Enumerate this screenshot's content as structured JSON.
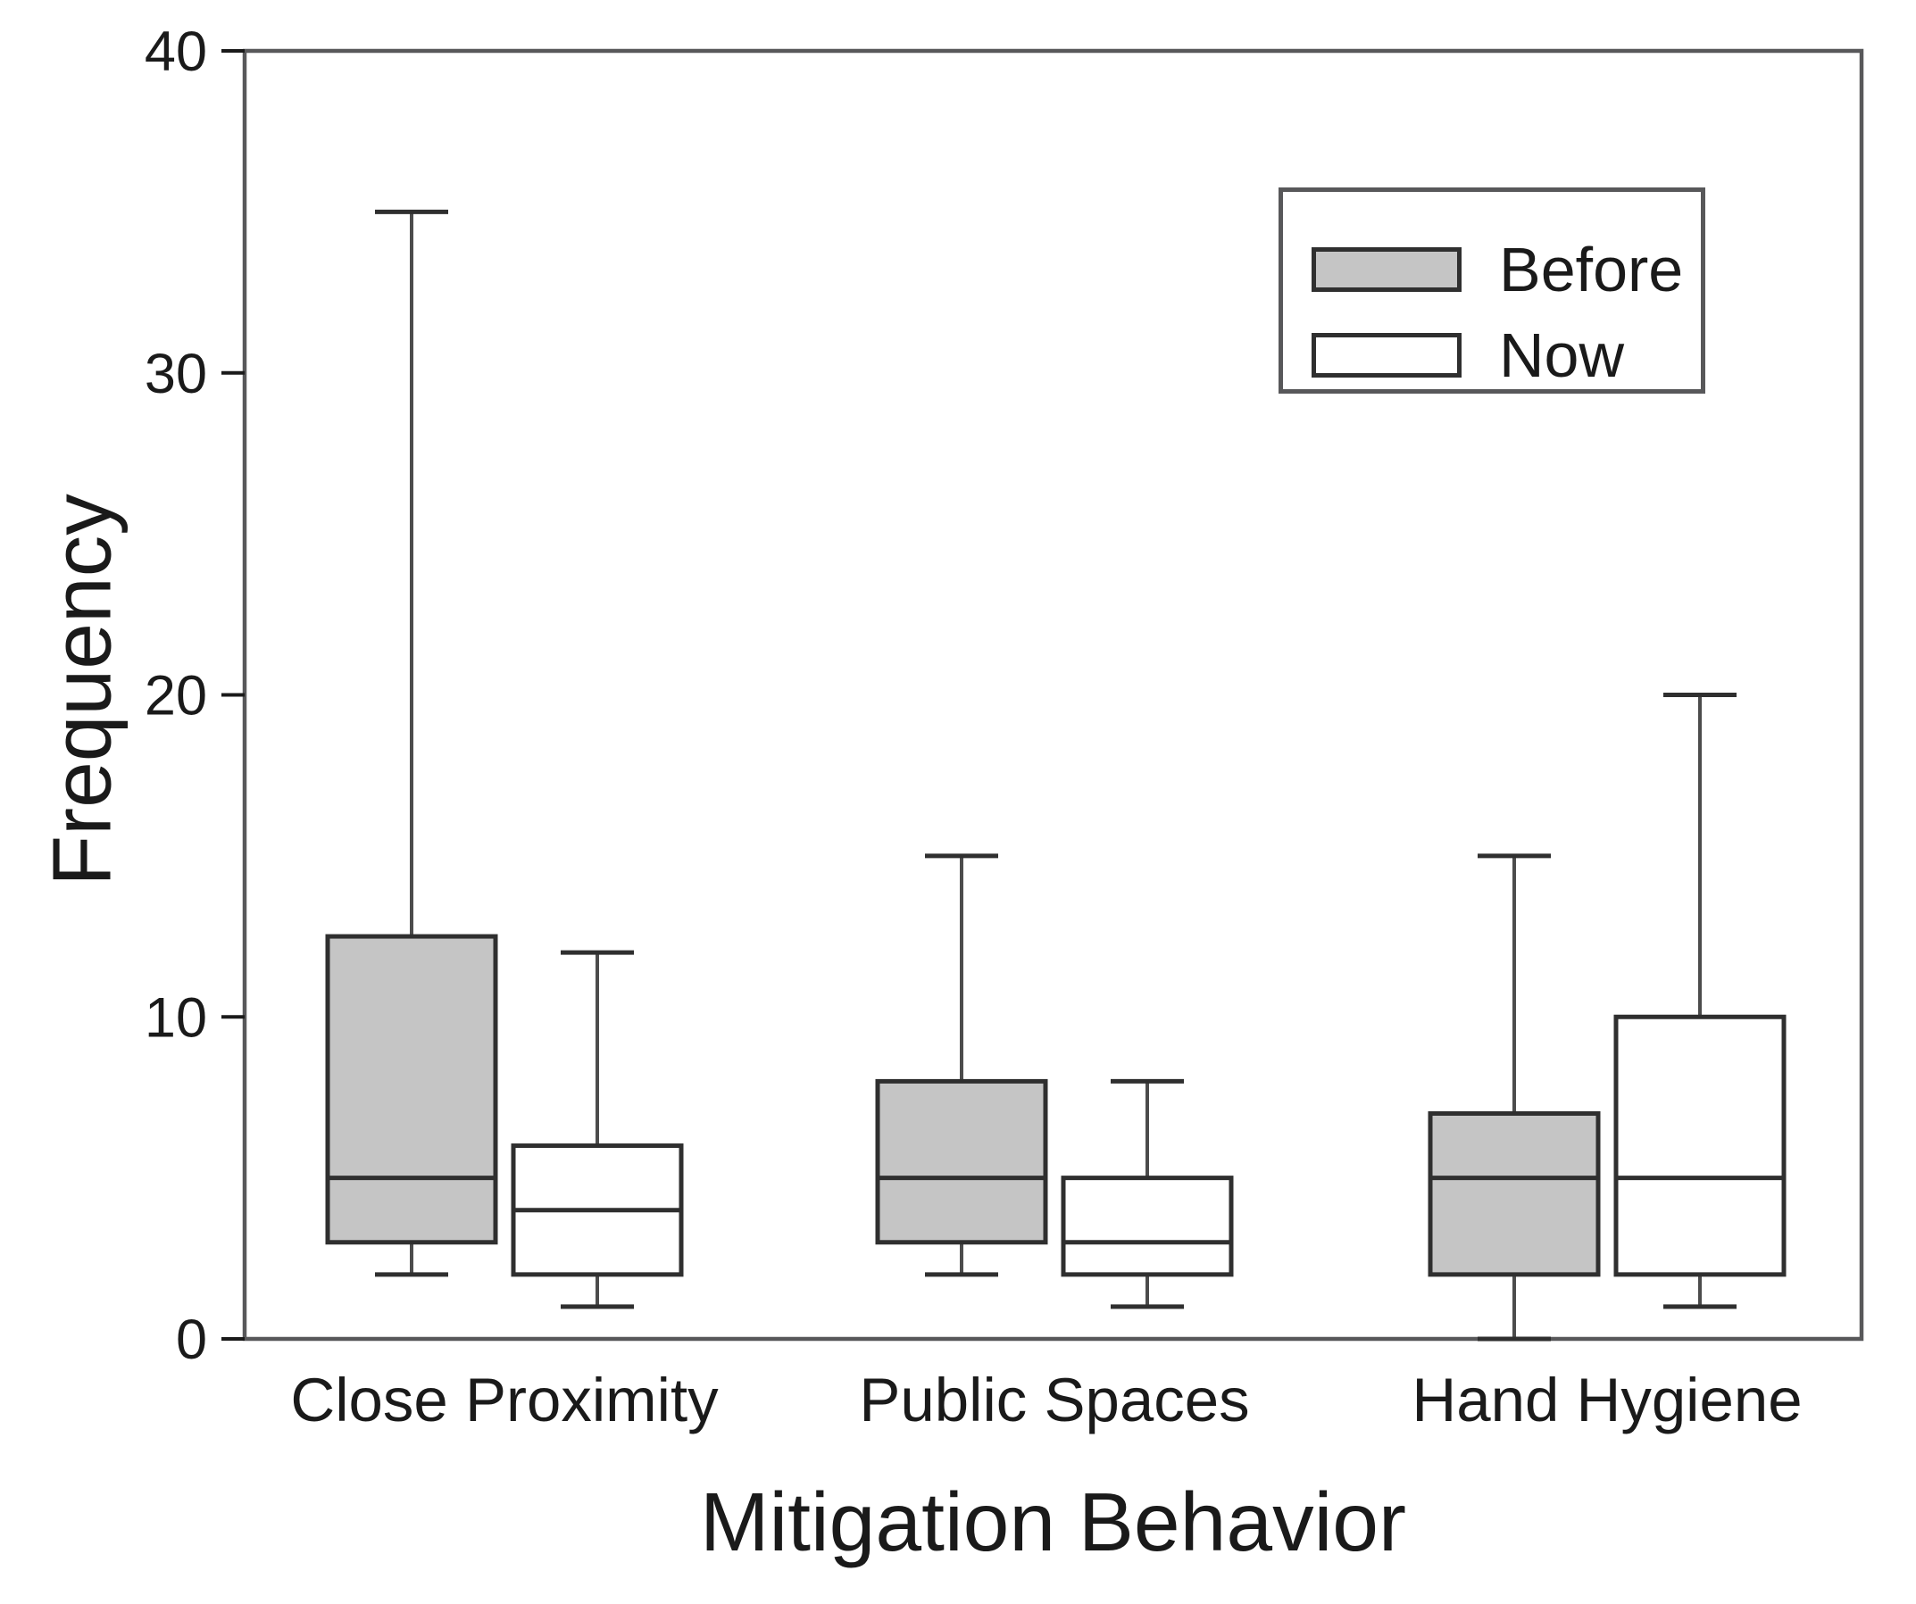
{
  "chart_data": {
    "type": "boxplot",
    "title": "",
    "xlabel": "Mitigation Behavior",
    "ylabel": "Frequency",
    "ylim": [
      0,
      40
    ],
    "yticks": [
      0,
      10,
      20,
      30,
      40
    ],
    "categories": [
      "Close Proximity",
      "Public Spaces",
      "Hand Hygiene"
    ],
    "legend_position": "top-right",
    "series": [
      {
        "name": "Before",
        "fill": "#c5c5c5",
        "boxes": [
          {
            "category": "Close Proximity",
            "whisker_low": 2,
            "q1": 3,
            "median": 5,
            "q3": 12.5,
            "whisker_high": 35
          },
          {
            "category": "Public Spaces",
            "whisker_low": 2,
            "q1": 3,
            "median": 5,
            "q3": 8,
            "whisker_high": 15
          },
          {
            "category": "Hand Hygiene",
            "whisker_low": 0,
            "q1": 2,
            "median": 5,
            "q3": 7,
            "whisker_high": 15
          }
        ]
      },
      {
        "name": "Now",
        "fill": "#ffffff",
        "boxes": [
          {
            "category": "Close Proximity",
            "whisker_low": 1,
            "q1": 2,
            "median": 4,
            "q3": 6,
            "whisker_high": 12
          },
          {
            "category": "Public Spaces",
            "whisker_low": 1,
            "q1": 2,
            "median": 3,
            "q3": 5,
            "whisker_high": 8
          },
          {
            "category": "Hand Hygiene",
            "whisker_low": 1,
            "q1": 2,
            "median": 5,
            "q3": 10,
            "whisker_high": 20
          }
        ]
      }
    ],
    "colors": {
      "box_border": "#2f2f2f",
      "whisker": "#4c4c4c",
      "frame": "#58585a",
      "text": "#1a1a1a",
      "fill_before": "#c5c5c5",
      "fill_now": "#ffffff",
      "background": "#ffffff"
    }
  }
}
